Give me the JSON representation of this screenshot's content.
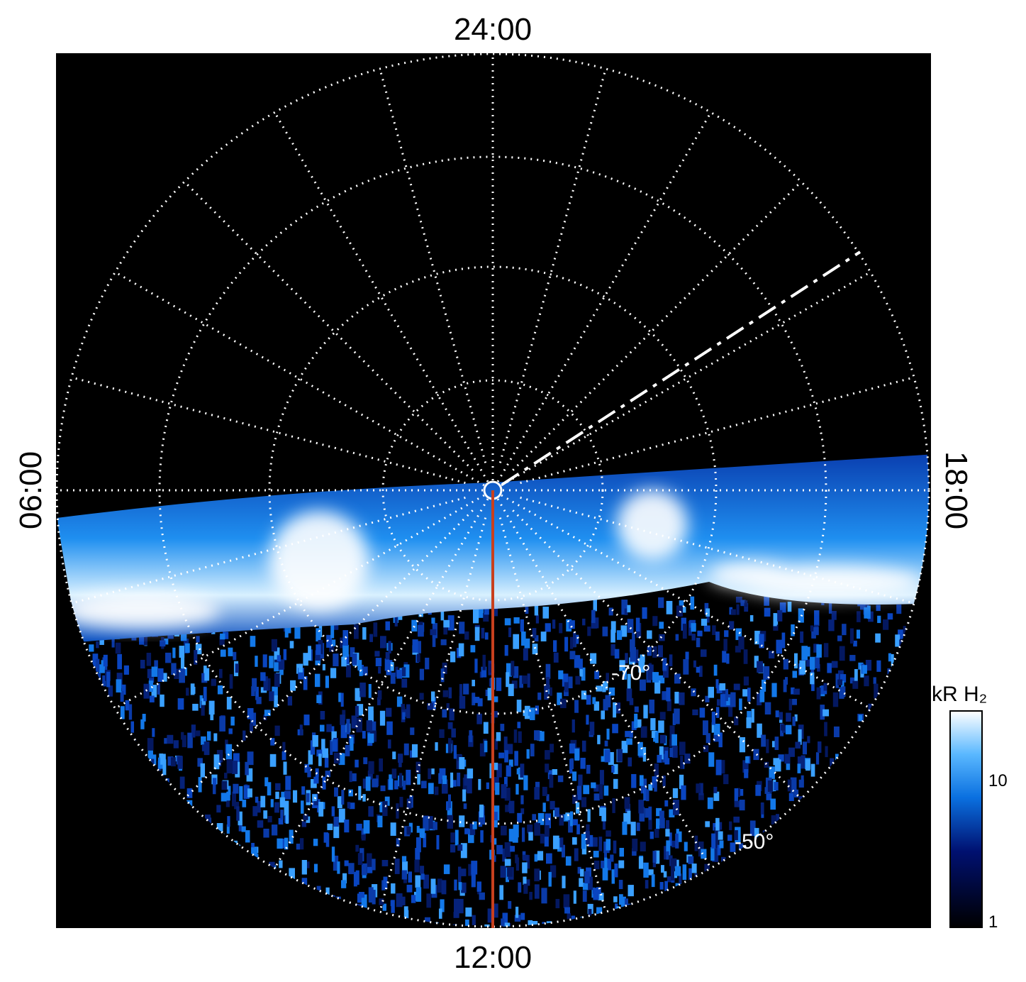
{
  "plot": {
    "local_time_labels": {
      "top": "24:00",
      "left": "06:00",
      "right": "18:00",
      "bottom": "12:00"
    },
    "latitude_labels": [
      "-70°",
      "-50°"
    ]
  },
  "colorbar": {
    "title": "kR H₂",
    "tick_labels": [
      "10",
      "1"
    ]
  }
}
